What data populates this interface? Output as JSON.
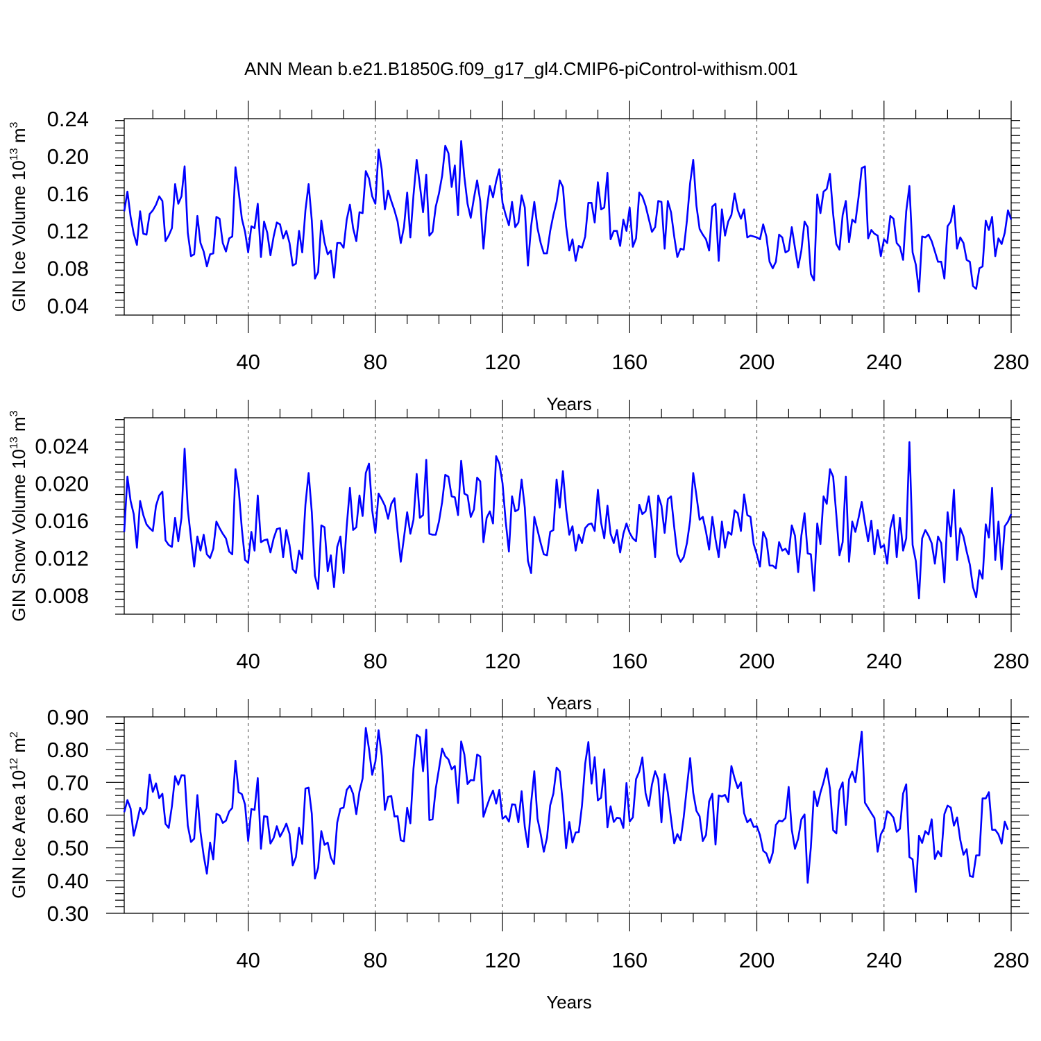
{
  "title": "ANN Mean b.e21.B1850G.f09_g17_gl4.CMIP6-piControl-withism.001",
  "chart_data": [
    {
      "type": "line",
      "ylabel": "GIN Ice Volume 10",
      "ylabel_exp": "13",
      "ylabel_unit": " m",
      "ylabel_unit_exp": "3",
      "xlabel": "Years",
      "xlim": [
        1,
        280
      ],
      "ylim": [
        0.03,
        0.24
      ],
      "xticks": [
        40,
        80,
        120,
        160,
        200,
        240,
        280
      ],
      "xtick_labels": [
        "40",
        "80",
        "120",
        "160",
        "200",
        "240",
        "280"
      ],
      "yticks": [
        0.04,
        0.08,
        0.12,
        0.16,
        0.2,
        0.24
      ],
      "ytick_labels": [
        "0.04",
        "0.08",
        "0.12",
        "0.16",
        "0.20",
        "0.24"
      ],
      "ymin_minor": 0.03,
      "ymajor_step": 0.04,
      "yminor_step": 0.008,
      "grid_x": true,
      "color": "#0000ff",
      "series": [
        {
          "values": [
            0.141,
            0.162,
            0.135,
            0.117,
            0.105,
            0.141,
            0.117,
            0.116,
            0.138,
            0.142,
            0.148,
            0.157,
            0.152,
            0.109,
            0.115,
            0.123,
            0.17,
            0.149,
            0.157,
            0.189,
            0.118,
            0.093,
            0.095,
            0.136,
            0.107,
            0.098,
            0.082,
            0.095,
            0.096,
            0.135,
            0.133,
            0.107,
            0.098,
            0.112,
            0.114,
            0.188,
            0.162,
            0.133,
            0.119,
            0.097,
            0.125,
            0.123,
            0.149,
            0.092,
            0.13,
            0.118,
            0.094,
            0.114,
            0.129,
            0.127,
            0.112,
            0.12,
            0.107,
            0.083,
            0.085,
            0.12,
            0.097,
            0.142,
            0.17,
            0.131,
            0.069,
            0.076,
            0.131,
            0.108,
            0.095,
            0.099,
            0.07,
            0.107,
            0.107,
            0.102,
            0.132,
            0.148,
            0.123,
            0.109,
            0.14,
            0.139,
            0.184,
            0.176,
            0.157,
            0.149,
            0.207,
            0.186,
            0.143,
            0.163,
            0.152,
            0.142,
            0.13,
            0.107,
            0.124,
            0.161,
            0.113,
            0.158,
            0.196,
            0.169,
            0.14,
            0.18,
            0.115,
            0.119,
            0.146,
            0.16,
            0.179,
            0.211,
            0.203,
            0.167,
            0.19,
            0.137,
            0.216,
            0.178,
            0.149,
            0.134,
            0.155,
            0.174,
            0.152,
            0.101,
            0.142,
            0.168,
            0.156,
            0.173,
            0.186,
            0.15,
            0.137,
            0.126,
            0.151,
            0.124,
            0.129,
            0.158,
            0.145,
            0.083,
            0.125,
            0.151,
            0.123,
            0.107,
            0.096,
            0.096,
            0.12,
            0.137,
            0.151,
            0.174,
            0.167,
            0.125,
            0.099,
            0.111,
            0.088,
            0.104,
            0.102,
            0.114,
            0.15,
            0.15,
            0.129,
            0.172,
            0.143,
            0.145,
            0.182,
            0.111,
            0.12,
            0.12,
            0.104,
            0.132,
            0.12,
            0.145,
            0.103,
            0.112,
            0.161,
            0.157,
            0.147,
            0.133,
            0.119,
            0.124,
            0.152,
            0.151,
            0.101,
            0.152,
            0.14,
            0.114,
            0.092,
            0.101,
            0.1,
            0.131,
            0.171,
            0.196,
            0.147,
            0.122,
            0.116,
            0.111,
            0.099,
            0.146,
            0.149,
            0.088,
            0.143,
            0.115,
            0.13,
            0.137,
            0.16,
            0.142,
            0.133,
            0.143,
            0.113,
            0.115,
            0.114,
            0.113,
            0.111,
            0.127,
            0.114,
            0.087,
            0.08,
            0.087,
            0.116,
            0.113,
            0.097,
            0.099,
            0.124,
            0.102,
            0.081,
            0.099,
            0.13,
            0.124,
            0.074,
            0.067,
            0.159,
            0.139,
            0.162,
            0.165,
            0.181,
            0.138,
            0.106,
            0.1,
            0.137,
            0.152,
            0.108,
            0.132,
            0.129,
            0.156,
            0.187,
            0.189,
            0.112,
            0.121,
            0.117,
            0.115,
            0.093,
            0.111,
            0.107,
            0.136,
            0.133,
            0.107,
            0.103,
            0.089,
            0.141,
            0.168,
            0.097,
            0.084,
            0.055,
            0.114,
            0.113,
            0.116,
            0.109,
            0.098,
            0.087,
            0.087,
            0.069,
            0.125,
            0.13,
            0.147,
            0.101,
            0.113,
            0.107,
            0.089,
            0.087,
            0.061,
            0.058,
            0.08,
            0.082,
            0.131,
            0.121,
            0.135,
            0.093,
            0.112,
            0.106,
            0.118,
            0.142,
            0.132
          ]
        }
      ]
    },
    {
      "type": "line",
      "ylabel": "GIN Snow Volume 10",
      "ylabel_exp": "13",
      "ylabel_unit": " m",
      "ylabel_unit_exp": "3",
      "xlabel": "Years",
      "xlim": [
        1,
        280
      ],
      "ylim": [
        0.006,
        0.027
      ],
      "xticks": [
        40,
        80,
        120,
        160,
        200,
        240,
        280
      ],
      "xtick_labels": [
        "40",
        "80",
        "120",
        "160",
        "200",
        "240",
        "280"
      ],
      "yticks": [
        0.008,
        0.012,
        0.016,
        0.02,
        0.024
      ],
      "ytick_labels": [
        "0.008",
        "0.012",
        "0.016",
        "0.020",
        "0.024"
      ],
      "ymin_minor": 0.006,
      "ymajor_step": 0.004,
      "yminor_step": 0.0008,
      "grid_x": true,
      "color": "#0000ff",
      "series": [
        {
          "values": [
            0.0148,
            0.0207,
            0.0181,
            0.0167,
            0.0131,
            0.0181,
            0.0166,
            0.0156,
            0.0152,
            0.0149,
            0.0176,
            0.0187,
            0.0191,
            0.0139,
            0.0134,
            0.0132,
            0.0163,
            0.0138,
            0.0163,
            0.0237,
            0.0172,
            0.0141,
            0.0111,
            0.0143,
            0.0128,
            0.0145,
            0.0124,
            0.012,
            0.013,
            0.0159,
            0.0152,
            0.0146,
            0.0141,
            0.0127,
            0.0124,
            0.0215,
            0.0194,
            0.0151,
            0.0118,
            0.0115,
            0.0148,
            0.0128,
            0.0187,
            0.0137,
            0.0139,
            0.014,
            0.0126,
            0.0141,
            0.0151,
            0.0152,
            0.0121,
            0.015,
            0.0134,
            0.0108,
            0.0104,
            0.0128,
            0.0119,
            0.0177,
            0.0211,
            0.0169,
            0.0101,
            0.0087,
            0.0155,
            0.0153,
            0.0106,
            0.0123,
            0.0089,
            0.0132,
            0.0143,
            0.0104,
            0.0154,
            0.0195,
            0.015,
            0.0153,
            0.0187,
            0.0165,
            0.0211,
            0.0221,
            0.0171,
            0.0147,
            0.0189,
            0.0183,
            0.0176,
            0.0162,
            0.0178,
            0.0184,
            0.0148,
            0.0116,
            0.0142,
            0.0169,
            0.0146,
            0.0161,
            0.021,
            0.0163,
            0.0166,
            0.0225,
            0.0146,
            0.0145,
            0.0145,
            0.0159,
            0.018,
            0.0209,
            0.0207,
            0.0186,
            0.0185,
            0.0166,
            0.0224,
            0.0189,
            0.0187,
            0.0164,
            0.0172,
            0.0206,
            0.0202,
            0.0137,
            0.0163,
            0.017,
            0.0157,
            0.0229,
            0.0221,
            0.02,
            0.0159,
            0.0127,
            0.0186,
            0.017,
            0.0172,
            0.0204,
            0.0174,
            0.0117,
            0.0104,
            0.0164,
            0.015,
            0.0136,
            0.0124,
            0.0123,
            0.0148,
            0.015,
            0.0204,
            0.0174,
            0.0213,
            0.0172,
            0.0145,
            0.0154,
            0.0128,
            0.0145,
            0.0136,
            0.0152,
            0.0156,
            0.0157,
            0.0149,
            0.0193,
            0.0158,
            0.0141,
            0.0176,
            0.0146,
            0.0136,
            0.015,
            0.0126,
            0.0146,
            0.0157,
            0.0147,
            0.0141,
            0.0138,
            0.0177,
            0.0167,
            0.017,
            0.0186,
            0.0159,
            0.0121,
            0.0187,
            0.0176,
            0.0147,
            0.0183,
            0.0186,
            0.0153,
            0.0124,
            0.0116,
            0.0121,
            0.0136,
            0.016,
            0.0211,
            0.0187,
            0.0161,
            0.0164,
            0.0148,
            0.0129,
            0.0164,
            0.014,
            0.0121,
            0.0159,
            0.0131,
            0.0148,
            0.0145,
            0.0171,
            0.0168,
            0.0149,
            0.0188,
            0.0166,
            0.0164,
            0.0135,
            0.0124,
            0.0111,
            0.0148,
            0.014,
            0.0112,
            0.0112,
            0.0109,
            0.0137,
            0.0128,
            0.013,
            0.0124,
            0.0155,
            0.0144,
            0.0105,
            0.0144,
            0.0168,
            0.0125,
            0.0124,
            0.0085,
            0.0157,
            0.0135,
            0.0186,
            0.0178,
            0.0215,
            0.0207,
            0.0166,
            0.0123,
            0.0137,
            0.0207,
            0.0116,
            0.0159,
            0.0148,
            0.0163,
            0.018,
            0.0158,
            0.0138,
            0.016,
            0.0124,
            0.015,
            0.0131,
            0.0134,
            0.0114,
            0.0152,
            0.0166,
            0.0121,
            0.0163,
            0.0128,
            0.0141,
            0.0244,
            0.0134,
            0.0117,
            0.0077,
            0.0141,
            0.015,
            0.0144,
            0.0136,
            0.0114,
            0.0143,
            0.0136,
            0.0094,
            0.0169,
            0.0143,
            0.0193,
            0.0118,
            0.0152,
            0.0143,
            0.0127,
            0.0113,
            0.0089,
            0.0078,
            0.0107,
            0.0098,
            0.0156,
            0.0142,
            0.0195,
            0.0118,
            0.0159,
            0.0108,
            0.0154,
            0.0159,
            0.0167
          ]
        }
      ]
    },
    {
      "type": "line",
      "ylabel": "GIN Ice Area 10",
      "ylabel_exp": "12",
      "ylabel_unit": " m",
      "ylabel_unit_exp": "2",
      "xlabel": "Years",
      "xlim": [
        1,
        280
      ],
      "ylim": [
        0.3,
        0.9
      ],
      "xticks": [
        40,
        80,
        120,
        160,
        200,
        240,
        280
      ],
      "xtick_labels": [
        "40",
        "80",
        "120",
        "160",
        "200",
        "240",
        "280"
      ],
      "yticks": [
        0.3,
        0.4,
        0.5,
        0.6,
        0.7,
        0.8,
        0.9
      ],
      "ytick_labels": [
        "0.30",
        "0.40",
        "0.50",
        "0.60",
        "0.70",
        "0.80",
        "0.90"
      ],
      "ymin_minor": 0.3,
      "ymajor_step": 0.1,
      "yminor_step": 0.02,
      "grid_x": true,
      "color": "#0000ff",
      "series": [
        {
          "values": [
            0.609,
            0.646,
            0.62,
            0.537,
            0.577,
            0.622,
            0.603,
            0.62,
            0.724,
            0.671,
            0.697,
            0.652,
            0.665,
            0.573,
            0.561,
            0.627,
            0.719,
            0.693,
            0.722,
            0.721,
            0.568,
            0.518,
            0.528,
            0.661,
            0.548,
            0.476,
            0.421,
            0.516,
            0.465,
            0.604,
            0.599,
            0.576,
            0.583,
            0.611,
            0.622,
            0.766,
            0.67,
            0.664,
            0.632,
            0.521,
            0.619,
            0.616,
            0.713,
            0.497,
            0.597,
            0.595,
            0.513,
            0.53,
            0.566,
            0.534,
            0.552,
            0.574,
            0.543,
            0.446,
            0.472,
            0.561,
            0.512,
            0.681,
            0.684,
            0.604,
            0.406,
            0.439,
            0.551,
            0.509,
            0.516,
            0.47,
            0.451,
            0.577,
            0.62,
            0.623,
            0.677,
            0.69,
            0.665,
            0.603,
            0.672,
            0.712,
            0.866,
            0.802,
            0.723,
            0.763,
            0.859,
            0.781,
            0.616,
            0.656,
            0.658,
            0.596,
            0.597,
            0.523,
            0.52,
            0.622,
            0.575,
            0.742,
            0.845,
            0.838,
            0.734,
            0.861,
            0.585,
            0.587,
            0.681,
            0.741,
            0.803,
            0.78,
            0.77,
            0.74,
            0.75,
            0.637,
            0.825,
            0.785,
            0.695,
            0.707,
            0.706,
            0.785,
            0.779,
            0.595,
            0.625,
            0.653,
            0.675,
            0.635,
            0.677,
            0.589,
            0.597,
            0.58,
            0.633,
            0.632,
            0.578,
            0.673,
            0.564,
            0.502,
            0.636,
            0.734,
            0.589,
            0.542,
            0.488,
            0.531,
            0.63,
            0.666,
            0.745,
            0.734,
            0.634,
            0.499,
            0.579,
            0.516,
            0.547,
            0.548,
            0.629,
            0.757,
            0.823,
            0.696,
            0.777,
            0.645,
            0.653,
            0.74,
            0.563,
            0.627,
            0.579,
            0.592,
            0.59,
            0.561,
            0.698,
            0.58,
            0.593,
            0.71,
            0.733,
            0.776,
            0.667,
            0.628,
            0.693,
            0.734,
            0.709,
            0.578,
            0.725,
            0.669,
            0.589,
            0.514,
            0.542,
            0.523,
            0.594,
            0.686,
            0.774,
            0.668,
            0.613,
            0.596,
            0.521,
            0.539,
            0.642,
            0.665,
            0.51,
            0.66,
            0.657,
            0.662,
            0.64,
            0.75,
            0.712,
            0.682,
            0.7,
            0.606,
            0.578,
            0.588,
            0.564,
            0.566,
            0.539,
            0.491,
            0.483,
            0.454,
            0.485,
            0.57,
            0.583,
            0.581,
            0.591,
            0.686,
            0.555,
            0.497,
            0.528,
            0.587,
            0.602,
            0.393,
            0.502,
            0.672,
            0.627,
            0.669,
            0.701,
            0.743,
            0.681,
            0.554,
            0.544,
            0.675,
            0.7,
            0.57,
            0.709,
            0.733,
            0.701,
            0.777,
            0.855,
            0.638,
            0.622,
            0.606,
            0.591,
            0.488,
            0.541,
            0.56,
            0.612,
            0.605,
            0.592,
            0.549,
            0.558,
            0.666,
            0.694,
            0.472,
            0.465,
            0.365,
            0.537,
            0.515,
            0.551,
            0.541,
            0.587,
            0.466,
            0.49,
            0.474,
            0.603,
            0.629,
            0.623,
            0.568,
            0.593,
            0.524,
            0.479,
            0.496,
            0.414,
            0.411,
            0.477,
            0.477,
            0.651,
            0.651,
            0.67,
            0.555,
            0.555,
            0.541,
            0.513,
            0.58,
            0.555
          ]
        }
      ]
    }
  ]
}
